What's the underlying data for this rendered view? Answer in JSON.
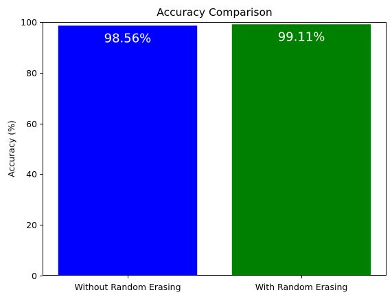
{
  "chart_data": {
    "type": "bar",
    "title": "Accuracy Comparison",
    "xlabel": "",
    "ylabel": "Accuracy (%)",
    "categories": [
      "Without Random Erasing",
      "With Random Erasing"
    ],
    "values": [
      98.56,
      99.11
    ],
    "data_labels": [
      "98.56%",
      "99.11%"
    ],
    "colors": [
      "#0000ff",
      "#008000"
    ],
    "data_label_color": "#ffffff",
    "ylim": [
      0,
      100
    ],
    "yticks": [
      0,
      20,
      40,
      60,
      80,
      100
    ],
    "ytick_labels": [
      "0",
      "20",
      "40",
      "60",
      "80",
      "100"
    ],
    "grid": false,
    "legend": "none"
  }
}
